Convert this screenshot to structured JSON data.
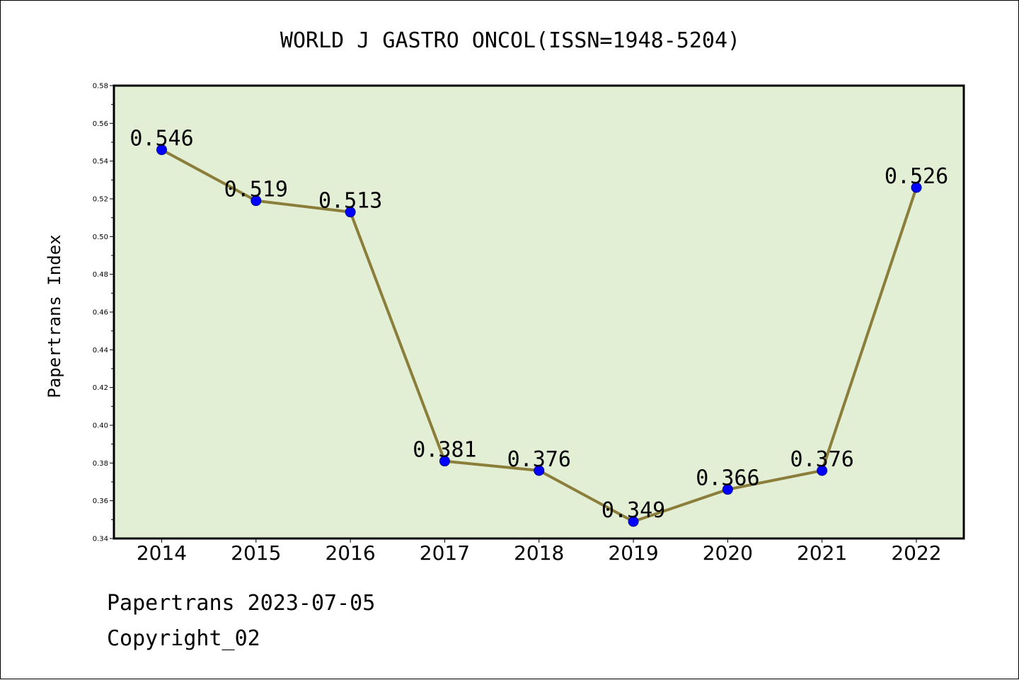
{
  "chart_data": {
    "type": "line",
    "title": "WORLD J GASTRO ONCOL(ISSN=1948-5204)",
    "xlabel": "",
    "ylabel": "Papertrans Index",
    "categories": [
      "2014",
      "2015",
      "2016",
      "2017",
      "2018",
      "2019",
      "2020",
      "2021",
      "2022"
    ],
    "values": [
      0.546,
      0.519,
      0.513,
      0.381,
      0.376,
      0.349,
      0.366,
      0.376,
      0.526
    ],
    "data_labels": [
      "0.546",
      "0.519",
      "0.513",
      "0.381",
      "0.376",
      "0.349",
      "0.366",
      "0.376",
      "0.526"
    ],
    "ylim": [
      0.34,
      0.58
    ],
    "yticks": [
      0.34,
      0.36,
      0.38,
      0.4,
      0.42,
      0.44,
      0.46,
      0.48,
      0.5,
      0.52,
      0.54,
      0.56,
      0.58
    ],
    "ytick_labels": [
      "0.34",
      "0.36",
      "0.38",
      "0.40",
      "0.42",
      "0.44",
      "0.46",
      "0.48",
      "0.50",
      "0.52",
      "0.54",
      "0.56",
      "0.58"
    ],
    "grid": false,
    "legend": "none",
    "colors": {
      "plot_background": "#e2efd5",
      "line": "#8b7d3a",
      "marker": "#0000ff"
    }
  },
  "footer": {
    "line1": "Papertrans 2023-07-05",
    "line2": "Copyright_02"
  }
}
